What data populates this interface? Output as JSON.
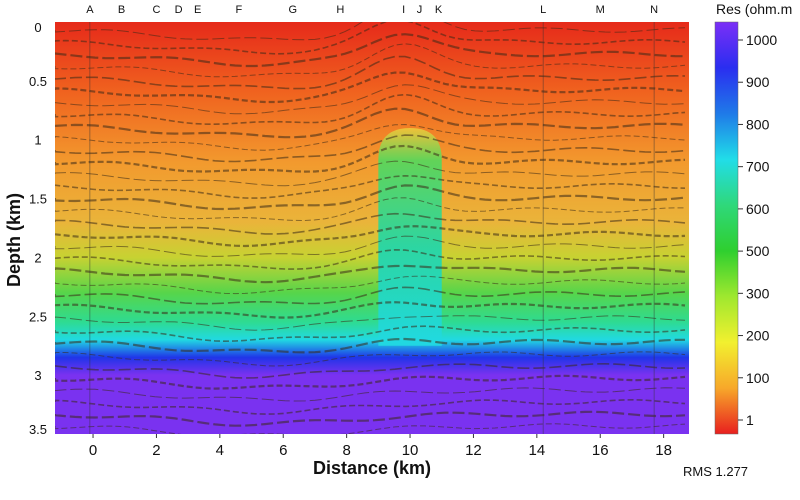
{
  "chart_data": {
    "type": "heatmap",
    "xlabel": "Distance (km)",
    "ylabel": "Depth (km)",
    "x_ticks": [
      0,
      2,
      4,
      6,
      8,
      10,
      12,
      14,
      16,
      18
    ],
    "y_ticks": [
      0,
      0.5,
      1,
      1.5,
      2,
      2.5,
      3,
      3.5
    ],
    "xlim": [
      -1.2,
      18.8
    ],
    "ylim": [
      0,
      3.5
    ],
    "y_reversed": true,
    "stations": [
      {
        "name": "A",
        "x": -0.1
      },
      {
        "name": "B",
        "x": 0.9
      },
      {
        "name": "C",
        "x": 2.0
      },
      {
        "name": "D",
        "x": 2.7
      },
      {
        "name": "E",
        "x": 3.3
      },
      {
        "name": "F",
        "x": 4.6
      },
      {
        "name": "G",
        "x": 6.3
      },
      {
        "name": "H",
        "x": 7.8
      },
      {
        "name": "I",
        "x": 9.8
      },
      {
        "name": "J",
        "x": 10.3
      },
      {
        "name": "K",
        "x": 10.9
      },
      {
        "name": "L",
        "x": 14.2
      },
      {
        "name": "M",
        "x": 16.0
      },
      {
        "name": "N",
        "x": 17.7
      }
    ],
    "colorbar": {
      "title": "Res (ohm.m",
      "ticks": [
        "1000",
        "900",
        "800",
        "700",
        "600",
        "500",
        "300",
        "200",
        "100",
        "1"
      ],
      "colors": [
        "#7b2ff7",
        "#2a2ef0",
        "#1f7ae8",
        "#21dde8",
        "#2fd87a",
        "#2fcf2f",
        "#9fe82f",
        "#f2f02f",
        "#f7a82a",
        "#e81f1f"
      ]
    },
    "model_top_to_bottom": [
      {
        "depth": 0.0,
        "color": "#e62a1a"
      },
      {
        "depth": 0.6,
        "color": "#f0631f"
      },
      {
        "depth": 1.2,
        "color": "#f29a2e"
      },
      {
        "depth": 1.7,
        "color": "#eab43a"
      },
      {
        "depth": 2.0,
        "color": "#c7d232"
      },
      {
        "depth": 2.3,
        "color": "#57d54a"
      },
      {
        "depth": 2.55,
        "color": "#2edb92"
      },
      {
        "depth": 2.7,
        "color": "#21d9e2"
      },
      {
        "depth": 2.85,
        "color": "#2035e8"
      },
      {
        "depth": 3.0,
        "color": "#7a32f0"
      }
    ],
    "conductor_anomaly": {
      "x_range": [
        9.0,
        11.0
      ],
      "top_depth": 0.9,
      "color": "#27d88a"
    },
    "rms_label": "RMS 1.277"
  }
}
